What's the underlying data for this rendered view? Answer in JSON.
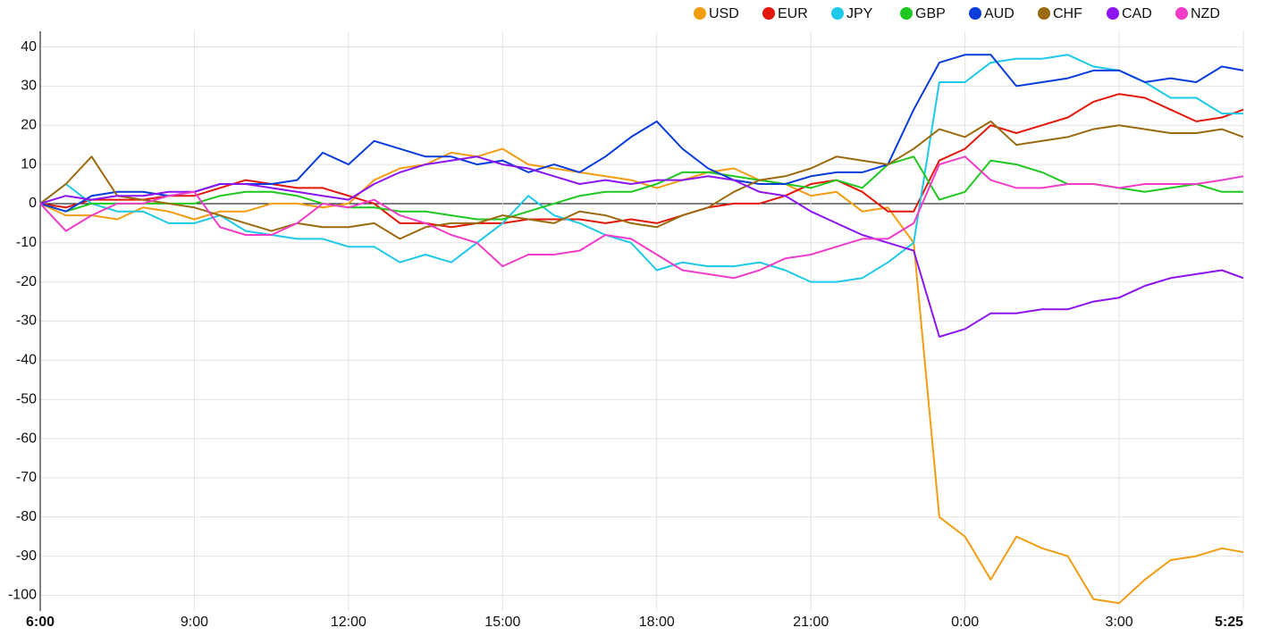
{
  "chart_data": {
    "type": "line",
    "x": [
      "6:00",
      "6:30",
      "7:00",
      "7:30",
      "8:00",
      "8:30",
      "9:00",
      "9:30",
      "10:00",
      "10:30",
      "11:00",
      "11:30",
      "12:00",
      "12:30",
      "13:00",
      "13:30",
      "14:00",
      "14:30",
      "15:00",
      "15:30",
      "16:00",
      "16:30",
      "17:00",
      "17:30",
      "18:00",
      "18:30",
      "19:00",
      "19:30",
      "20:00",
      "20:30",
      "21:00",
      "21:30",
      "22:00",
      "22:30",
      "23:00",
      "23:30",
      "0:00",
      "0:30",
      "1:00",
      "1:30",
      "2:00",
      "2:30",
      "3:00",
      "3:30",
      "4:00",
      "4:30",
      "5:00",
      "5:25"
    ],
    "xlim": [
      "6:00",
      "5:25"
    ],
    "xticks": [
      "6:00",
      "9:00",
      "12:00",
      "15:00",
      "18:00",
      "21:00",
      "0:00",
      "3:00",
      "5:25"
    ],
    "ylim": [
      -104,
      44
    ],
    "yticks": [
      -100,
      -90,
      -80,
      -70,
      -60,
      -50,
      -40,
      -30,
      -20,
      -10,
      0,
      10,
      20,
      30,
      40
    ],
    "grid": true,
    "legend": "top-right",
    "series": [
      {
        "name": "USD",
        "color": "#f39c12",
        "values": [
          0,
          -3,
          -3,
          -4,
          -1,
          -2,
          -4,
          -2,
          -2,
          0,
          0,
          -1,
          0,
          6,
          9,
          10,
          13,
          12,
          14,
          10,
          9,
          8,
          7,
          6,
          4,
          6,
          8,
          9,
          6,
          5,
          2,
          3,
          -2,
          -1,
          -10,
          -80,
          -85,
          -96,
          -85,
          -88,
          -90,
          -101,
          -102,
          -96,
          -91,
          -90,
          -88,
          -89
        ]
      },
      {
        "name": "EUR",
        "color": "#e3170a",
        "values": [
          0,
          -1,
          1,
          1,
          1,
          2,
          2,
          4,
          6,
          5,
          4,
          4,
          2,
          0,
          -5,
          -5,
          -6,
          -5,
          -5,
          -4,
          -4,
          -4,
          -5,
          -4,
          -5,
          -3,
          -1,
          0,
          0,
          2,
          5,
          6,
          3,
          -2,
          -2,
          11,
          14,
          20,
          18,
          20,
          22,
          26,
          28,
          27,
          24,
          21,
          22,
          24
        ]
      },
      {
        "name": "JPY",
        "color": "#1ec8e8",
        "values": [
          0,
          5,
          0,
          -2,
          -2,
          -5,
          -5,
          -3,
          -7,
          -8,
          -9,
          -9,
          -11,
          -11,
          -15,
          -13,
          -15,
          -10,
          -5,
          2,
          -3,
          -5,
          -8,
          -10,
          -17,
          -15,
          -16,
          -16,
          -15,
          -17,
          -20,
          -20,
          -19,
          -15,
          -10,
          31,
          31,
          36,
          37,
          37,
          38,
          35,
          34,
          31,
          27,
          27,
          23,
          23
        ]
      },
      {
        "name": "GBP",
        "color": "#1ec81e",
        "values": [
          0,
          -2,
          0,
          0,
          0,
          0,
          0,
          2,
          3,
          3,
          2,
          0,
          -1,
          -1,
          -2,
          -2,
          -3,
          -4,
          -4,
          -2,
          0,
          2,
          3,
          3,
          5,
          8,
          8,
          7,
          6,
          5,
          4,
          6,
          4,
          10,
          12,
          1,
          3,
          11,
          10,
          8,
          5,
          5,
          4,
          3,
          4,
          5,
          3,
          3
        ]
      },
      {
        "name": "AUD",
        "color": "#0a3cdc",
        "values": [
          0,
          -2,
          2,
          3,
          3,
          2,
          3,
          5,
          5,
          5,
          6,
          13,
          10,
          16,
          14,
          12,
          12,
          10,
          11,
          8,
          10,
          8,
          12,
          17,
          21,
          14,
          9,
          6,
          5,
          5,
          7,
          8,
          8,
          10,
          24,
          36,
          38,
          38,
          30,
          31,
          32,
          34,
          34,
          31,
          32,
          31,
          35,
          34
        ]
      },
      {
        "name": "CHF",
        "color": "#9b6a0e",
        "values": [
          0,
          5,
          12,
          2,
          1,
          0,
          -1,
          -3,
          -5,
          -7,
          -5,
          -6,
          -6,
          -5,
          -9,
          -6,
          -5,
          -5,
          -3,
          -4,
          -5,
          -2,
          -3,
          -5,
          -6,
          -3,
          -1,
          3,
          6,
          7,
          9,
          12,
          11,
          10,
          14,
          19,
          17,
          21,
          15,
          16,
          17,
          19,
          20,
          19,
          18,
          18,
          19,
          17
        ]
      },
      {
        "name": "CAD",
        "color": "#8c14f0",
        "values": [
          0,
          2,
          1,
          2,
          2,
          3,
          3,
          5,
          5,
          4,
          3,
          2,
          1,
          5,
          8,
          10,
          11,
          12,
          10,
          9,
          7,
          5,
          6,
          5,
          6,
          6,
          7,
          6,
          3,
          2,
          -2,
          -5,
          -8,
          -10,
          -12,
          -34,
          -32,
          -28,
          -28,
          -27,
          -27,
          -25,
          -24,
          -21,
          -19,
          -18,
          -17,
          -19
        ]
      },
      {
        "name": "NZD",
        "color": "#f03cc8",
        "values": [
          0,
          -7,
          -3,
          0,
          0,
          2,
          3,
          -6,
          -8,
          -8,
          -5,
          0,
          -1,
          1,
          -3,
          -5,
          -8,
          -10,
          -16,
          -13,
          -13,
          -12,
          -8,
          -9,
          -13,
          -17,
          -18,
          -19,
          -17,
          -14,
          -13,
          -11,
          -9,
          -9,
          -5,
          10,
          12,
          6,
          4,
          4,
          5,
          5,
          4,
          5,
          5,
          5,
          6,
          7
        ]
      }
    ]
  }
}
